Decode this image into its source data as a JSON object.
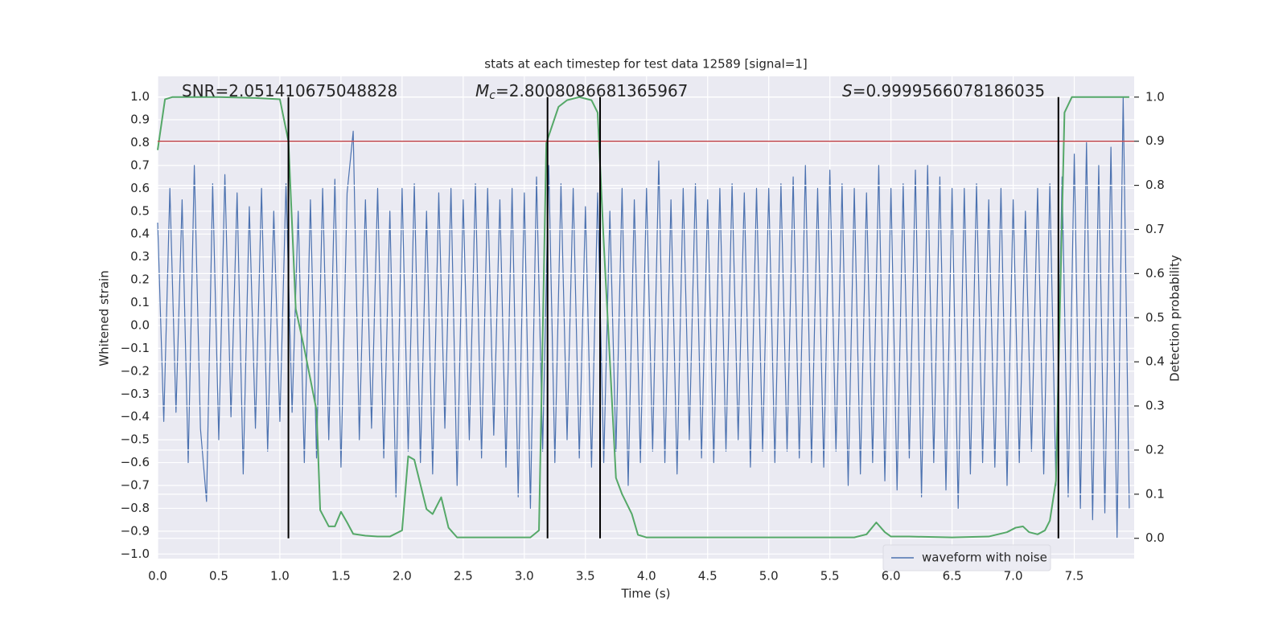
{
  "chart_data": {
    "type": "line",
    "title": "stats at each timestep for test data 12589 [signal=1]",
    "x_label": "Time (s)",
    "y_label": "Whitened strain",
    "y2_label": "Detection probability",
    "annotations": [
      {
        "text": "SNR=2.051410675048828"
      },
      {
        "symbol": "M",
        "subscript": "c",
        "text": "=2.8008086681365967"
      },
      {
        "symbol": "S",
        "text": "=0.9999566078186035"
      }
    ],
    "xlim": [
      0,
      7.99
    ],
    "ylim": [
      -1.02,
      1.09
    ],
    "y2lim": [
      -0.046,
      1.047
    ],
    "xticks": [
      {
        "value": 0,
        "label": "0.0"
      },
      0.5,
      {
        "value": 1,
        "label": "1.0"
      },
      1.5,
      {
        "value": 2,
        "label": "2.0"
      },
      2.5,
      {
        "value": 3,
        "label": "3.0"
      },
      3.5,
      {
        "value": 4,
        "label": "4.0"
      },
      4.5,
      {
        "value": 5,
        "label": "5.0"
      },
      5.5,
      {
        "value": 6,
        "label": "6.0"
      },
      6.5,
      {
        "value": 7,
        "label": "7.0"
      },
      7.5
    ],
    "yticks": [
      {
        "value": -1,
        "label": "−1.0"
      },
      {
        "value": -0.9,
        "label": "−0.9"
      },
      {
        "value": -0.8,
        "label": "−0.8"
      },
      {
        "value": -0.7,
        "label": "−0.7"
      },
      {
        "value": -0.6,
        "label": "−0.6"
      },
      {
        "value": -0.5,
        "label": "−0.5"
      },
      {
        "value": -0.4,
        "label": "−0.4"
      },
      {
        "value": -0.3,
        "label": "−0.3"
      },
      {
        "value": -0.2,
        "label": "−0.2"
      },
      {
        "value": -0.1,
        "label": "−0.1"
      },
      {
        "value": 0,
        "label": "0.0"
      },
      0.1,
      0.2,
      0.3,
      0.4,
      0.5,
      0.6,
      0.7,
      0.8,
      0.9,
      {
        "value": 1,
        "label": "1.0"
      }
    ],
    "y2ticks": [
      {
        "value": 0,
        "label": "0.0"
      },
      0.1,
      0.2,
      0.3,
      0.4,
      0.5,
      0.6,
      0.7,
      0.8,
      0.9,
      {
        "value": 1,
        "label": "1.0"
      }
    ],
    "grid": true,
    "legend": "lower right",
    "series": [
      {
        "name": "waveform with noise",
        "color": "#4c72b0",
        "x": [
          0,
          0.05,
          0.1,
          0.15,
          0.2,
          0.25,
          0.3,
          0.35,
          0.4,
          0.45,
          0.5,
          0.55,
          0.6,
          0.65,
          0.7,
          0.75,
          0.8,
          0.85,
          0.9,
          0.95,
          1,
          1.05,
          1.1,
          1.15,
          1.2,
          1.25,
          1.3,
          1.35,
          1.4,
          1.45,
          1.5,
          1.55,
          1.6,
          1.65,
          1.7,
          1.75,
          1.8,
          1.85,
          1.9,
          1.95,
          2,
          2.05,
          2.1,
          2.15,
          2.2,
          2.25,
          2.3,
          2.35,
          2.4,
          2.45,
          2.5,
          2.55,
          2.6,
          2.65,
          2.7,
          2.75,
          2.8,
          2.85,
          2.9,
          2.95,
          3,
          3.05,
          3.1,
          3.15,
          3.2,
          3.25,
          3.3,
          3.35,
          3.4,
          3.45,
          3.5,
          3.55,
          3.6,
          3.65,
          3.7,
          3.75,
          3.8,
          3.85,
          3.9,
          3.95,
          4,
          4.05,
          4.1,
          4.15,
          4.2,
          4.25,
          4.3,
          4.35,
          4.4,
          4.45,
          4.5,
          4.55,
          4.6,
          4.65,
          4.7,
          4.75,
          4.8,
          4.85,
          4.9,
          4.95,
          5,
          5.05,
          5.1,
          5.15,
          5.2,
          5.25,
          5.3,
          5.35,
          5.4,
          5.45,
          5.5,
          5.55,
          5.6,
          5.65,
          5.7,
          5.75,
          5.8,
          5.85,
          5.9,
          5.95,
          6,
          6.05,
          6.1,
          6.15,
          6.2,
          6.25,
          6.3,
          6.35,
          6.4,
          6.45,
          6.5,
          6.55,
          6.6,
          6.65,
          6.7,
          6.75,
          6.8,
          6.85,
          6.9,
          6.95,
          7,
          7.05,
          7.1,
          7.15,
          7.2,
          7.25,
          7.3,
          7.35,
          7.4,
          7.45,
          7.5,
          7.55,
          7.6,
          7.65,
          7.7,
          7.75,
          7.8,
          7.85,
          7.9,
          7.95
        ],
        "values": [
          0.45,
          -0.42,
          0.6,
          -0.38,
          0.55,
          -0.6,
          0.7,
          -0.45,
          -0.77,
          0.62,
          -0.5,
          0.66,
          -0.4,
          0.58,
          -0.65,
          0.52,
          -0.45,
          0.6,
          -0.55,
          0.5,
          -0.42,
          0.62,
          -0.38,
          0.5,
          -0.6,
          0.55,
          -0.58,
          0.6,
          -0.5,
          0.64,
          -0.62,
          0.58,
          0.85,
          -0.5,
          0.55,
          -0.45,
          0.6,
          -0.58,
          0.5,
          -0.75,
          0.6,
          -0.55,
          0.62,
          -0.6,
          0.5,
          -0.65,
          0.58,
          -0.45,
          0.6,
          -0.7,
          0.55,
          -0.5,
          0.62,
          -0.58,
          0.6,
          -0.48,
          0.55,
          -0.62,
          0.6,
          -0.75,
          0.58,
          -0.8,
          0.65,
          -0.55,
          0.7,
          -0.6,
          0.62,
          -0.5,
          0.6,
          -0.58,
          0.52,
          -0.62,
          0.58,
          -0.6,
          0.5,
          -0.55,
          0.6,
          -0.7,
          0.55,
          -0.6,
          0.6,
          -0.55,
          0.72,
          -0.6,
          0.55,
          -0.65,
          0.6,
          -0.5,
          0.62,
          -0.58,
          0.55,
          -0.6,
          0.6,
          -0.55,
          0.62,
          -0.5,
          0.58,
          -0.62,
          0.6,
          -0.55,
          0.6,
          -0.6,
          0.62,
          -0.55,
          0.65,
          -0.58,
          0.7,
          -0.6,
          0.6,
          -0.62,
          0.68,
          -0.55,
          0.62,
          -0.7,
          0.6,
          -0.65,
          0.58,
          -0.6,
          0.7,
          -0.68,
          0.6,
          -0.72,
          0.62,
          -0.58,
          0.68,
          -0.75,
          0.7,
          -0.6,
          0.65,
          -0.72,
          0.6,
          -0.8,
          0.6,
          -0.65,
          0.62,
          -0.6,
          0.55,
          -0.62,
          0.6,
          -0.7,
          0.55,
          -0.6,
          0.5,
          -0.55,
          0.6,
          -0.65,
          0.62,
          -0.7,
          0.65,
          -0.75,
          0.75,
          -0.8,
          0.8,
          -0.85,
          0.7,
          -0.82,
          0.78,
          -0.93,
          1.0,
          -0.8
        ]
      },
      {
        "color": "#55a868",
        "axis": "y2",
        "x": [
          0,
          0.06,
          0.12,
          0.5,
          0.8,
          1.0,
          1.07,
          1.13,
          1.2,
          1.3,
          1.33,
          1.4,
          1.45,
          1.5,
          1.55,
          1.6,
          1.7,
          1.8,
          1.9,
          2.0,
          2.05,
          2.1,
          2.2,
          2.25,
          2.32,
          2.38,
          2.45,
          3.05,
          3.12,
          3.18,
          3.28,
          3.35,
          3.45,
          3.55,
          3.6,
          3.65,
          3.75,
          3.8,
          3.88,
          3.93,
          4.0,
          5.7,
          5.8,
          5.88,
          5.95,
          6.0,
          6.15,
          6.5,
          6.8,
          6.95,
          7.02,
          7.08,
          7.13,
          7.2,
          7.26,
          7.3,
          7.35,
          7.38,
          7.42,
          7.48,
          7.95
        ],
        "values": [
          0.88,
          0.995,
          1.0,
          1.0,
          0.998,
          0.995,
          0.9,
          0.52,
          0.43,
          0.29,
          0.064,
          0.027,
          0.027,
          0.06,
          0.036,
          0.01,
          0.006,
          0.004,
          0.004,
          0.018,
          0.186,
          0.178,
          0.066,
          0.055,
          0.093,
          0.024,
          0.002,
          0.002,
          0.018,
          0.896,
          0.978,
          0.993,
          1.0,
          0.993,
          0.965,
          0.67,
          0.137,
          0.1,
          0.055,
          0.008,
          0.002,
          0.002,
          0.009,
          0.036,
          0.014,
          0.004,
          0.004,
          0.002,
          0.004,
          0.014,
          0.024,
          0.027,
          0.014,
          0.009,
          0.018,
          0.04,
          0.13,
          0.49,
          0.965,
          1.0,
          1.0
        ]
      }
    ],
    "hlines": [
      {
        "value": 0.9,
        "axis": "y2",
        "color": "#c44e52"
      }
    ],
    "vlines": [
      {
        "value": 1.07,
        "color": "#000000"
      },
      {
        "value": 3.19,
        "color": "#000000"
      },
      {
        "value": 3.62,
        "color": "#000000"
      },
      {
        "value": 7.37,
        "color": "#000000"
      }
    ]
  }
}
